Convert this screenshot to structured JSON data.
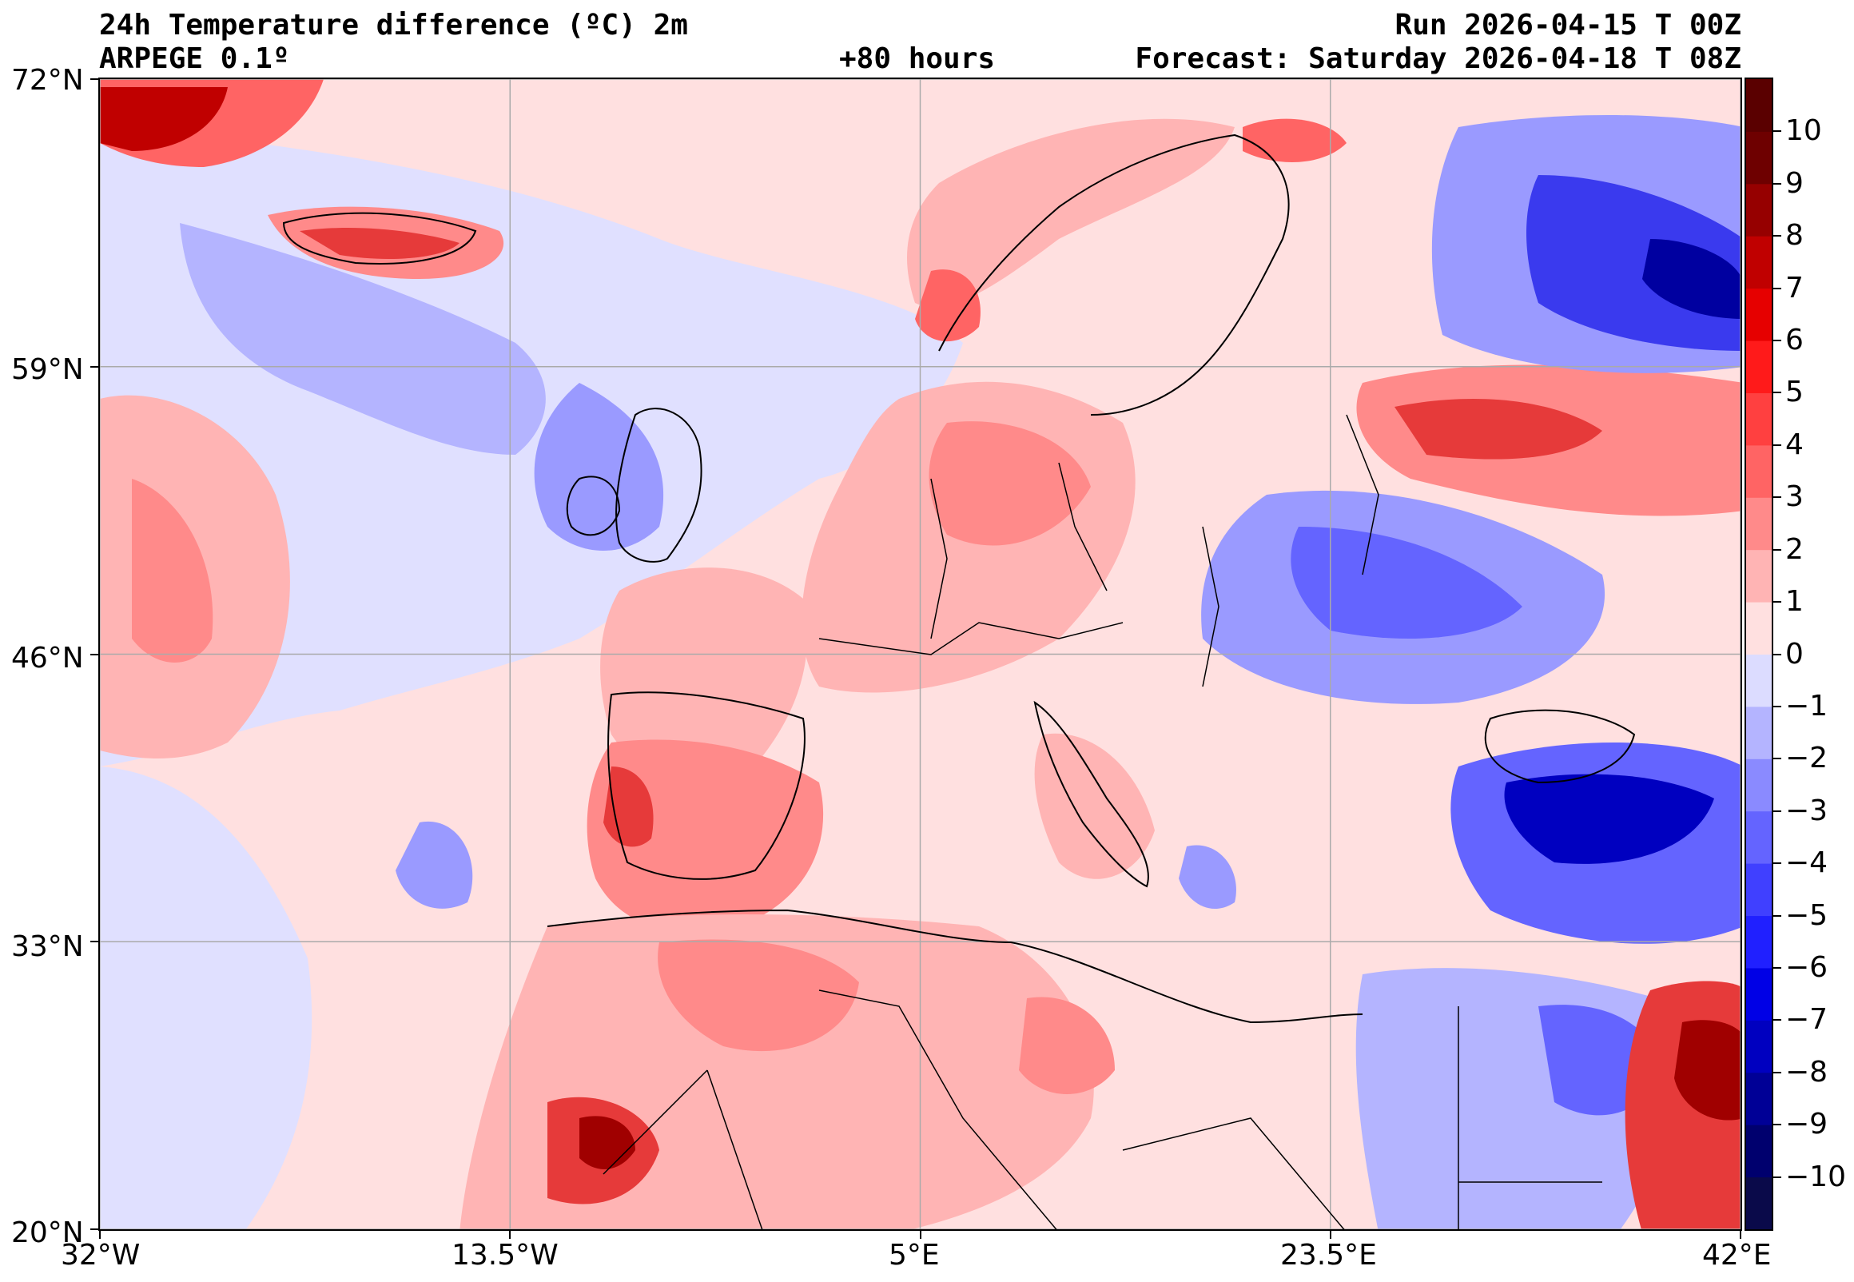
{
  "header": {
    "title": "24h Temperature difference (ºC) 2m",
    "model": "ARPEGE 0.1º",
    "run": "Run 2026-04-15 T 00Z",
    "lead": "+80 hours",
    "forecast": "Forecast: Saturday 2026-04-18 T 08Z"
  },
  "axes": {
    "lon_labels": [
      "32°W",
      "13.5°W",
      "5°E",
      "23.5°E",
      "42°E"
    ],
    "lat_labels": [
      "72°N",
      "59°N",
      "46°N",
      "33°N",
      "20°N"
    ],
    "lon_range": [
      -32,
      42
    ],
    "lat_range": [
      20,
      72
    ],
    "grid": true
  },
  "colorbar": {
    "range": [
      -11,
      11
    ],
    "tick_labels": [
      "10",
      "9",
      "8",
      "7",
      "6",
      "5",
      "4",
      "3",
      "2",
      "1",
      "0",
      "−1",
      "−2",
      "−3",
      "−4",
      "−5",
      "−6",
      "−7",
      "−8",
      "−9",
      "−10"
    ],
    "colors": [
      "#0a0a4a",
      "#00006e",
      "#000096",
      "#0000c0",
      "#0000e6",
      "#2020ff",
      "#4040ff",
      "#6464ff",
      "#8a8aff",
      "#b4b4ff",
      "#dcdcff",
      "#ffe0e0",
      "#ffb4b4",
      "#ff8a8a",
      "#ff6464",
      "#ff4040",
      "#ff1a1a",
      "#e60000",
      "#c00000",
      "#960000",
      "#6e0000",
      "#5a0000"
    ]
  },
  "palette": {
    "warm_light": "#ffe0e0",
    "warm_mid": "#ff9a9a",
    "warm_strong": "#e63a3a",
    "warm_dark": "#a00000",
    "cold_light": "#e0e0ff",
    "cold_mid": "#9a9aff",
    "cold_strong": "#3a3aee",
    "cold_dark": "#0000a0"
  }
}
